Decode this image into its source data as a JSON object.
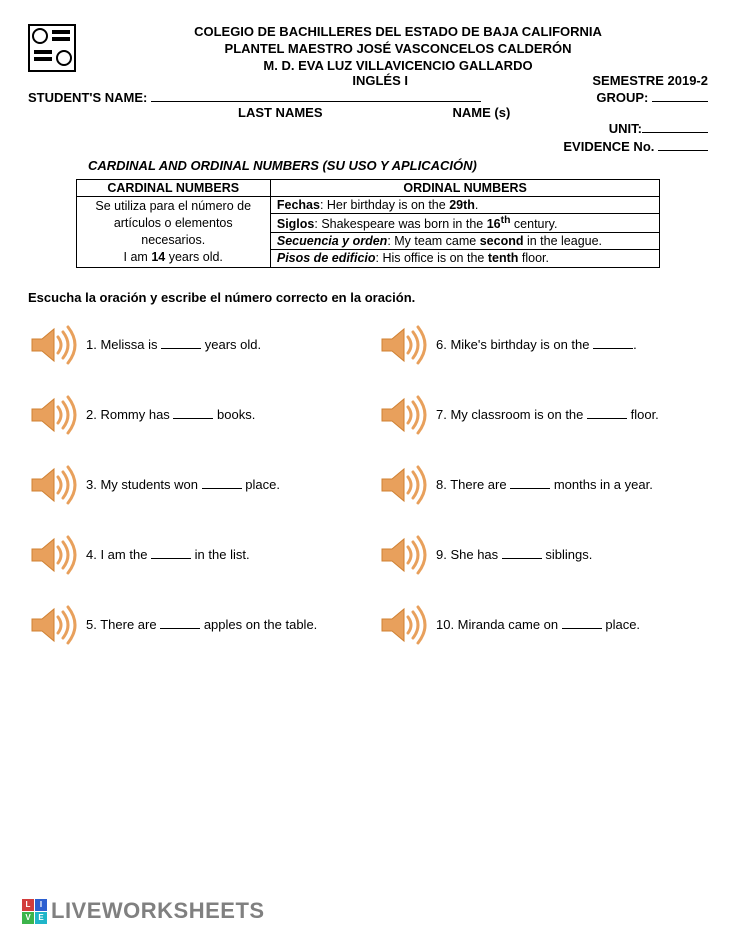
{
  "header": {
    "line1": "COLEGIO DE BACHILLERES DEL ESTADO DE BAJA CALIFORNIA",
    "line2": "PLANTEL MAESTRO JOSÉ VASCONCELOS CALDERÓN",
    "line3": "M. D. EVA LUZ VILLAVICENCIO GALLARDO",
    "course": "INGLÉS I",
    "semester_label": "SEMESTRE 2019-2",
    "student_label": "STUDENT'S NAME:",
    "group_label": "GROUP:",
    "last_names_label": "LAST NAMES",
    "names_label": "NAME (s)",
    "unit_label": "UNIT:",
    "evidence_label": "EVIDENCE No.",
    "section_title": "CARDINAL AND ORDINAL NUMBERS (SU USO Y APLICACIÓN)"
  },
  "table": {
    "cardinal_header": "CARDINAL NUMBERS",
    "ordinal_header": "ORDINAL NUMBERS",
    "cardinal_desc1": "Se utiliza para el número de",
    "cardinal_desc2": "artículos o elementos",
    "cardinal_desc3": "necesarios.",
    "cardinal_example_pre": "I am ",
    "cardinal_example_bold": "14",
    "cardinal_example_post": " years old.",
    "ord_fechas_label": "Fechas",
    "ord_fechas_text": ": Her birthday is on the ",
    "ord_fechas_bold": "29th",
    "ord_fechas_end": ".",
    "ord_siglos_label": "Siglos",
    "ord_siglos_text": ": Shakespeare was born in the ",
    "ord_siglos_bold": "16",
    "ord_siglos_sup": "th",
    "ord_siglos_end": " century.",
    "ord_seq_label": "Secuencia y orden",
    "ord_seq_text": ": My team came ",
    "ord_seq_bold": "second",
    "ord_seq_end": " in the league.",
    "ord_pisos_label": "Pisos de edificio",
    "ord_pisos_text": ": His office is on the ",
    "ord_pisos_bold": "tenth",
    "ord_pisos_end": " floor."
  },
  "instruction": "Escucha la oración y escribe el número correcto en la oración.",
  "exercises": {
    "q1_pre": "1. Melissa is ",
    "q1_post": " years old.",
    "q2_pre": "2. Rommy has ",
    "q2_post": " books.",
    "q3_pre": "3. My students won ",
    "q3_post": " place.",
    "q4_pre": "4. I am the ",
    "q4_post": " in the list.",
    "q5_pre": "5. There are ",
    "q5_post": " apples on the table.",
    "q6_pre": "6. Mike's birthday is on the ",
    "q6_post": ".",
    "q7_pre": "7. My classroom is on the ",
    "q7_post": " floor.",
    "q8_pre": "8. There are ",
    "q8_post": " months in a year.",
    "q9_pre": "9. She has ",
    "q9_post": " siblings.",
    "q10_pre": "10. Miranda came on ",
    "q10_post": " place."
  },
  "footer": {
    "tile_L": "L",
    "tile_I": "I",
    "tile_V": "V",
    "tile_E": "E",
    "brand": "LIVEWORKSHEETS"
  },
  "colors": {
    "speaker_fill": "#e8a05c",
    "speaker_stroke": "#d08030",
    "tile_red": "#d23c3c",
    "tile_blue": "#2c5fd0",
    "tile_green": "#3cb44b",
    "tile_cyan": "#1fb5c9",
    "footer_text": "#808080"
  }
}
